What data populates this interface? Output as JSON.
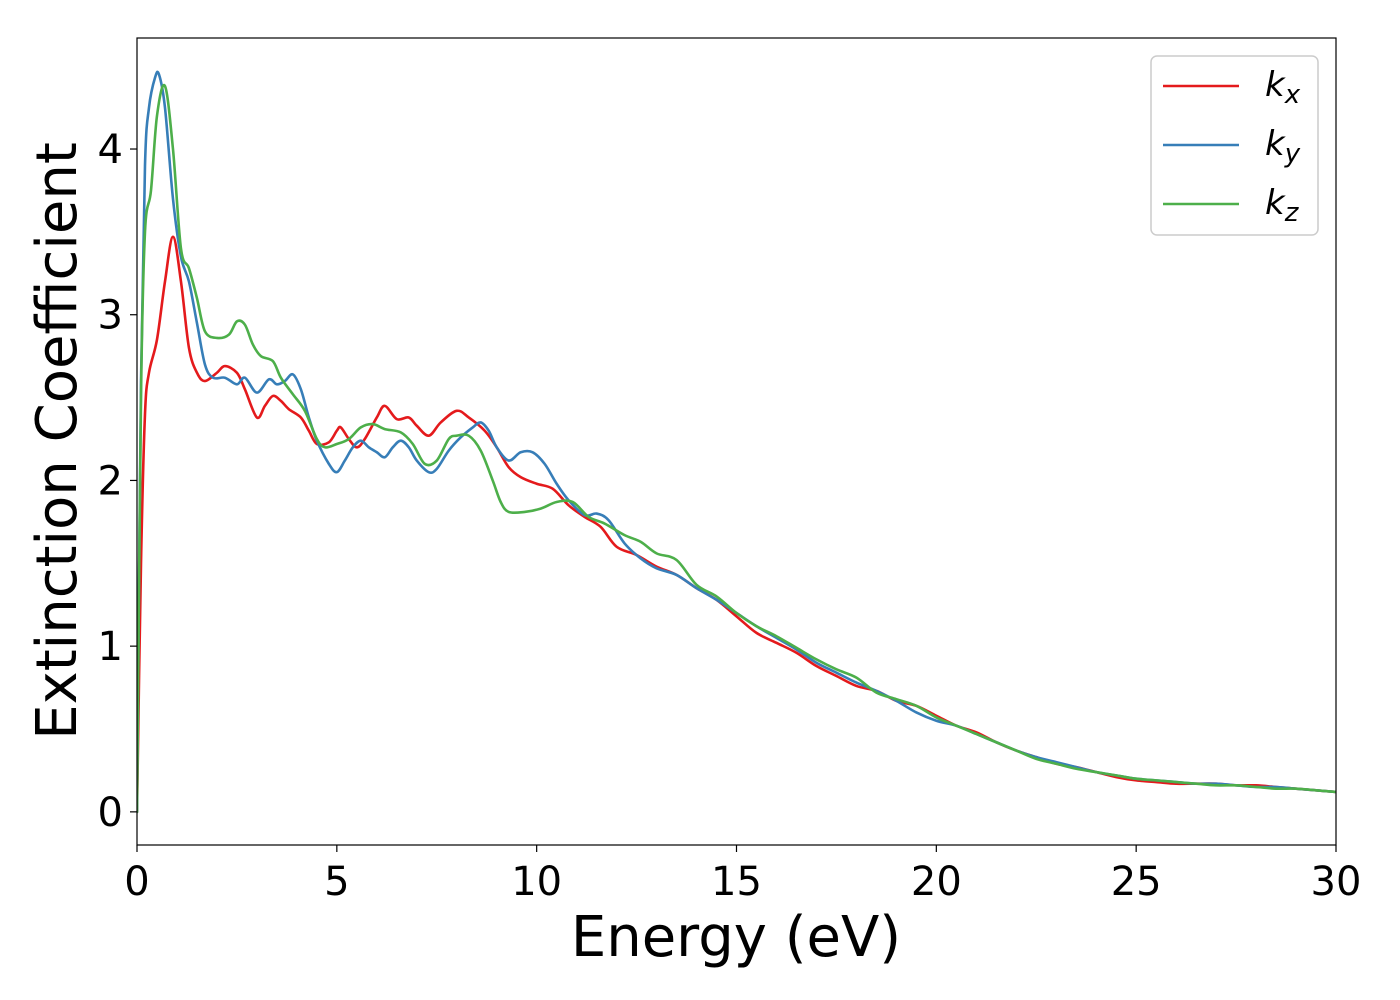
{
  "chart_data": {
    "type": "line",
    "xlabel": "Energy (eV)",
    "ylabel": "Extinction Coefficient",
    "xlim": [
      0,
      30
    ],
    "ylim": [
      -0.2,
      4.67
    ],
    "xticks": [
      0,
      5,
      10,
      15,
      20,
      25,
      30
    ],
    "xtick_labels": [
      "0",
      "5",
      "10",
      "15",
      "20",
      "25",
      "30"
    ],
    "yticks": [
      0,
      1,
      2,
      3,
      4
    ],
    "ytick_labels": [
      "0",
      "1",
      "2",
      "3",
      "4"
    ],
    "grid": false,
    "legend_position": "top-right",
    "series": [
      {
        "name": "k",
        "subscript": "x",
        "color": "#e41a1c",
        "points": [
          [
            0,
            0
          ],
          [
            0.1,
            1.5
          ],
          [
            0.2,
            2.4
          ],
          [
            0.3,
            2.65
          ],
          [
            0.5,
            2.85
          ],
          [
            0.7,
            3.2
          ],
          [
            0.9,
            3.47
          ],
          [
            1.1,
            3.2
          ],
          [
            1.3,
            2.8
          ],
          [
            1.5,
            2.65
          ],
          [
            1.7,
            2.6
          ],
          [
            2.0,
            2.65
          ],
          [
            2.2,
            2.69
          ],
          [
            2.5,
            2.65
          ],
          [
            2.7,
            2.55
          ],
          [
            3.0,
            2.38
          ],
          [
            3.2,
            2.45
          ],
          [
            3.4,
            2.51
          ],
          [
            3.6,
            2.48
          ],
          [
            3.8,
            2.43
          ],
          [
            4.1,
            2.38
          ],
          [
            4.3,
            2.3
          ],
          [
            4.5,
            2.22
          ],
          [
            4.8,
            2.23
          ],
          [
            5.0,
            2.3
          ],
          [
            5.1,
            2.32
          ],
          [
            5.3,
            2.25
          ],
          [
            5.5,
            2.2
          ],
          [
            5.7,
            2.25
          ],
          [
            6.0,
            2.38
          ],
          [
            6.2,
            2.45
          ],
          [
            6.5,
            2.37
          ],
          [
            6.8,
            2.38
          ],
          [
            7.0,
            2.33
          ],
          [
            7.3,
            2.27
          ],
          [
            7.6,
            2.35
          ],
          [
            8.0,
            2.42
          ],
          [
            8.3,
            2.38
          ],
          [
            8.7,
            2.3
          ],
          [
            9.0,
            2.2
          ],
          [
            9.3,
            2.08
          ],
          [
            9.6,
            2.02
          ],
          [
            10.0,
            1.98
          ],
          [
            10.4,
            1.95
          ],
          [
            10.8,
            1.85
          ],
          [
            11.2,
            1.78
          ],
          [
            11.6,
            1.72
          ],
          [
            12.0,
            1.6
          ],
          [
            12.5,
            1.55
          ],
          [
            13.0,
            1.48
          ],
          [
            13.5,
            1.43
          ],
          [
            14.0,
            1.35
          ],
          [
            14.5,
            1.28
          ],
          [
            15.0,
            1.18
          ],
          [
            15.5,
            1.08
          ],
          [
            16.0,
            1.02
          ],
          [
            16.5,
            0.96
          ],
          [
            17.0,
            0.88
          ],
          [
            17.5,
            0.82
          ],
          [
            18.0,
            0.76
          ],
          [
            18.5,
            0.73
          ],
          [
            19.0,
            0.67
          ],
          [
            19.5,
            0.64
          ],
          [
            20.0,
            0.58
          ],
          [
            20.5,
            0.52
          ],
          [
            21.0,
            0.48
          ],
          [
            21.5,
            0.42
          ],
          [
            22.0,
            0.37
          ],
          [
            22.5,
            0.33
          ],
          [
            23.0,
            0.29
          ],
          [
            23.5,
            0.27
          ],
          [
            24.0,
            0.24
          ],
          [
            24.5,
            0.21
          ],
          [
            25.0,
            0.19
          ],
          [
            25.5,
            0.18
          ],
          [
            26.0,
            0.17
          ],
          [
            26.5,
            0.17
          ],
          [
            27.0,
            0.17
          ],
          [
            27.5,
            0.16
          ],
          [
            28.0,
            0.16
          ],
          [
            28.5,
            0.15
          ],
          [
            29.0,
            0.14
          ],
          [
            29.5,
            0.13
          ],
          [
            30.0,
            0.12
          ]
        ]
      },
      {
        "name": "k",
        "subscript": "y",
        "color": "#377eb8",
        "points": [
          [
            0,
            0
          ],
          [
            0.1,
            2.6
          ],
          [
            0.2,
            3.9
          ],
          [
            0.3,
            4.25
          ],
          [
            0.45,
            4.43
          ],
          [
            0.55,
            4.45
          ],
          [
            0.7,
            4.25
          ],
          [
            0.9,
            3.7
          ],
          [
            1.1,
            3.35
          ],
          [
            1.3,
            3.2
          ],
          [
            1.5,
            2.95
          ],
          [
            1.7,
            2.7
          ],
          [
            1.9,
            2.62
          ],
          [
            2.2,
            2.62
          ],
          [
            2.5,
            2.58
          ],
          [
            2.7,
            2.62
          ],
          [
            3.0,
            2.53
          ],
          [
            3.3,
            2.61
          ],
          [
            3.5,
            2.58
          ],
          [
            3.7,
            2.6
          ],
          [
            3.9,
            2.64
          ],
          [
            4.1,
            2.55
          ],
          [
            4.3,
            2.38
          ],
          [
            4.5,
            2.24
          ],
          [
            4.8,
            2.1
          ],
          [
            5.0,
            2.05
          ],
          [
            5.2,
            2.12
          ],
          [
            5.4,
            2.2
          ],
          [
            5.6,
            2.24
          ],
          [
            5.8,
            2.2
          ],
          [
            6.0,
            2.17
          ],
          [
            6.2,
            2.14
          ],
          [
            6.4,
            2.2
          ],
          [
            6.6,
            2.24
          ],
          [
            6.8,
            2.2
          ],
          [
            7.0,
            2.12
          ],
          [
            7.3,
            2.05
          ],
          [
            7.5,
            2.07
          ],
          [
            7.8,
            2.18
          ],
          [
            8.1,
            2.26
          ],
          [
            8.4,
            2.32
          ],
          [
            8.6,
            2.35
          ],
          [
            8.8,
            2.3
          ],
          [
            9.0,
            2.2
          ],
          [
            9.3,
            2.12
          ],
          [
            9.6,
            2.17
          ],
          [
            9.9,
            2.17
          ],
          [
            10.2,
            2.1
          ],
          [
            10.5,
            1.98
          ],
          [
            10.8,
            1.88
          ],
          [
            11.2,
            1.79
          ],
          [
            11.5,
            1.8
          ],
          [
            11.8,
            1.76
          ],
          [
            12.2,
            1.62
          ],
          [
            12.6,
            1.53
          ],
          [
            13.0,
            1.47
          ],
          [
            13.5,
            1.43
          ],
          [
            14.0,
            1.35
          ],
          [
            14.5,
            1.28
          ],
          [
            15.0,
            1.2
          ],
          [
            15.5,
            1.12
          ],
          [
            16.0,
            1.05
          ],
          [
            16.5,
            0.98
          ],
          [
            17.0,
            0.9
          ],
          [
            17.5,
            0.84
          ],
          [
            18.0,
            0.78
          ],
          [
            18.5,
            0.73
          ],
          [
            19.0,
            0.67
          ],
          [
            19.5,
            0.6
          ],
          [
            20.0,
            0.55
          ],
          [
            20.5,
            0.52
          ],
          [
            21.0,
            0.47
          ],
          [
            21.5,
            0.42
          ],
          [
            22.0,
            0.37
          ],
          [
            22.5,
            0.33
          ],
          [
            23.0,
            0.3
          ],
          [
            23.5,
            0.27
          ],
          [
            24.0,
            0.24
          ],
          [
            24.5,
            0.22
          ],
          [
            25.0,
            0.2
          ],
          [
            25.5,
            0.19
          ],
          [
            26.0,
            0.18
          ],
          [
            26.5,
            0.17
          ],
          [
            27.0,
            0.17
          ],
          [
            27.5,
            0.16
          ],
          [
            28.0,
            0.15
          ],
          [
            28.5,
            0.15
          ],
          [
            29.0,
            0.14
          ],
          [
            29.5,
            0.13
          ],
          [
            30.0,
            0.12
          ]
        ]
      },
      {
        "name": "k",
        "subscript": "z",
        "color": "#4daf4a",
        "points": [
          [
            0,
            0
          ],
          [
            0.1,
            2.5
          ],
          [
            0.2,
            3.5
          ],
          [
            0.35,
            3.75
          ],
          [
            0.5,
            4.2
          ],
          [
            0.7,
            4.38
          ],
          [
            0.9,
            4.0
          ],
          [
            1.1,
            3.4
          ],
          [
            1.3,
            3.28
          ],
          [
            1.5,
            3.1
          ],
          [
            1.7,
            2.9
          ],
          [
            2.0,
            2.86
          ],
          [
            2.3,
            2.88
          ],
          [
            2.5,
            2.96
          ],
          [
            2.7,
            2.94
          ],
          [
            2.9,
            2.82
          ],
          [
            3.1,
            2.75
          ],
          [
            3.4,
            2.72
          ],
          [
            3.6,
            2.62
          ],
          [
            3.9,
            2.52
          ],
          [
            4.2,
            2.42
          ],
          [
            4.5,
            2.25
          ],
          [
            4.7,
            2.2
          ],
          [
            5.0,
            2.22
          ],
          [
            5.3,
            2.25
          ],
          [
            5.6,
            2.32
          ],
          [
            5.9,
            2.34
          ],
          [
            6.2,
            2.31
          ],
          [
            6.6,
            2.29
          ],
          [
            6.9,
            2.22
          ],
          [
            7.2,
            2.1
          ],
          [
            7.5,
            2.12
          ],
          [
            7.8,
            2.25
          ],
          [
            8.0,
            2.27
          ],
          [
            8.3,
            2.27
          ],
          [
            8.6,
            2.18
          ],
          [
            8.9,
            2.0
          ],
          [
            9.1,
            1.87
          ],
          [
            9.3,
            1.81
          ],
          [
            9.7,
            1.81
          ],
          [
            10.1,
            1.83
          ],
          [
            10.5,
            1.87
          ],
          [
            10.9,
            1.87
          ],
          [
            11.3,
            1.78
          ],
          [
            11.7,
            1.74
          ],
          [
            12.2,
            1.67
          ],
          [
            12.6,
            1.63
          ],
          [
            13.0,
            1.56
          ],
          [
            13.5,
            1.52
          ],
          [
            14.0,
            1.37
          ],
          [
            14.5,
            1.3
          ],
          [
            15.0,
            1.2
          ],
          [
            15.5,
            1.12
          ],
          [
            16.0,
            1.06
          ],
          [
            16.5,
            0.99
          ],
          [
            17.0,
            0.92
          ],
          [
            17.5,
            0.86
          ],
          [
            18.0,
            0.81
          ],
          [
            18.5,
            0.72
          ],
          [
            19.0,
            0.68
          ],
          [
            19.5,
            0.64
          ],
          [
            20.0,
            0.57
          ],
          [
            20.5,
            0.52
          ],
          [
            21.0,
            0.47
          ],
          [
            21.5,
            0.42
          ],
          [
            22.0,
            0.37
          ],
          [
            22.5,
            0.32
          ],
          [
            23.0,
            0.29
          ],
          [
            23.5,
            0.26
          ],
          [
            24.0,
            0.24
          ],
          [
            24.5,
            0.22
          ],
          [
            25.0,
            0.2
          ],
          [
            25.5,
            0.19
          ],
          [
            26.0,
            0.18
          ],
          [
            26.5,
            0.17
          ],
          [
            27.0,
            0.16
          ],
          [
            27.5,
            0.16
          ],
          [
            28.0,
            0.15
          ],
          [
            28.5,
            0.14
          ],
          [
            29.0,
            0.14
          ],
          [
            29.5,
            0.13
          ],
          [
            30.0,
            0.12
          ]
        ]
      }
    ]
  }
}
